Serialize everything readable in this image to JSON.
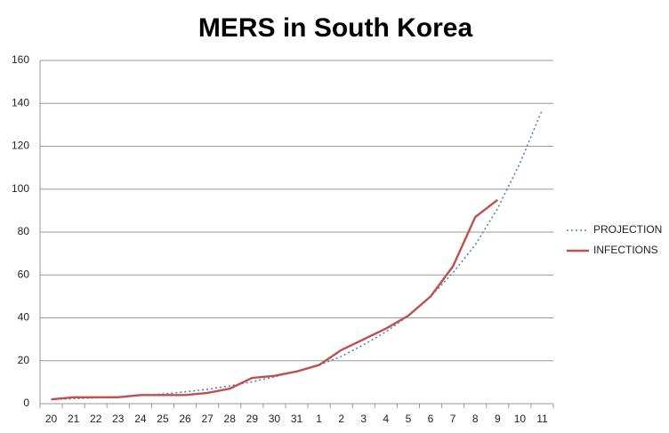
{
  "chart_data": {
    "type": "line",
    "title": "MERS in South Korea",
    "categories": [
      "20",
      "21",
      "22",
      "23",
      "24",
      "25",
      "26",
      "27",
      "28",
      "29",
      "30",
      "31",
      "1",
      "2",
      "3",
      "4",
      "5",
      "6",
      "7",
      "8",
      "9",
      "10",
      "11"
    ],
    "series": [
      {
        "name": "PROJECTION",
        "color": "#4f81bd",
        "dashed": true,
        "values": [
          2,
          2.3,
          2.7,
          3.2,
          3.8,
          4.5,
          5.5,
          6.7,
          8.3,
          10.2,
          12.5,
          15,
          18,
          22,
          27.5,
          33.5,
          41,
          50,
          61,
          74,
          91,
          112,
          137
        ]
      },
      {
        "name": "INFECTIONS",
        "color": "#c0504d",
        "dashed": false,
        "values": [
          2,
          3,
          3,
          3,
          4,
          4,
          4,
          5,
          7,
          12,
          13,
          15,
          18,
          25,
          30,
          35,
          41,
          50,
          64,
          87,
          95,
          null,
          null
        ]
      }
    ],
    "ylim": [
      0,
      160
    ],
    "yticks": [
      0,
      20,
      40,
      60,
      80,
      100,
      120,
      140,
      160
    ],
    "grid": true,
    "legend": "right"
  }
}
